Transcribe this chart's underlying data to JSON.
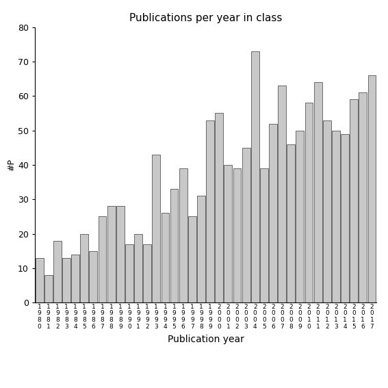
{
  "title": "Publications per year in class",
  "xlabel": "Publication year",
  "ylabel": "#P",
  "bar_color": "#c8c8c8",
  "bar_edgecolor": "#555555",
  "ylim": [
    0,
    80
  ],
  "yticks": [
    0,
    10,
    20,
    30,
    40,
    50,
    60,
    70,
    80
  ],
  "years": [
    "1980",
    "1981",
    "1982",
    "1983",
    "1984",
    "1985",
    "1986",
    "1987",
    "1988",
    "1989",
    "1990",
    "1991",
    "1992",
    "1993",
    "1994",
    "1995",
    "1996",
    "1997",
    "1998",
    "1999",
    "2000",
    "2001",
    "2002",
    "2003",
    "2004",
    "2005",
    "2006",
    "2007",
    "2008",
    "2009",
    "2010",
    "2011",
    "2012",
    "2013",
    "2014",
    "2015",
    "2016",
    "2017"
  ],
  "values": [
    13,
    8,
    18,
    13,
    14,
    20,
    15,
    25,
    28,
    28,
    17,
    20,
    17,
    43,
    26,
    33,
    39,
    25,
    31,
    53,
    55,
    40,
    39,
    45,
    73,
    39,
    52,
    63,
    46,
    50,
    58,
    64,
    53,
    50,
    49,
    59,
    61,
    66
  ]
}
